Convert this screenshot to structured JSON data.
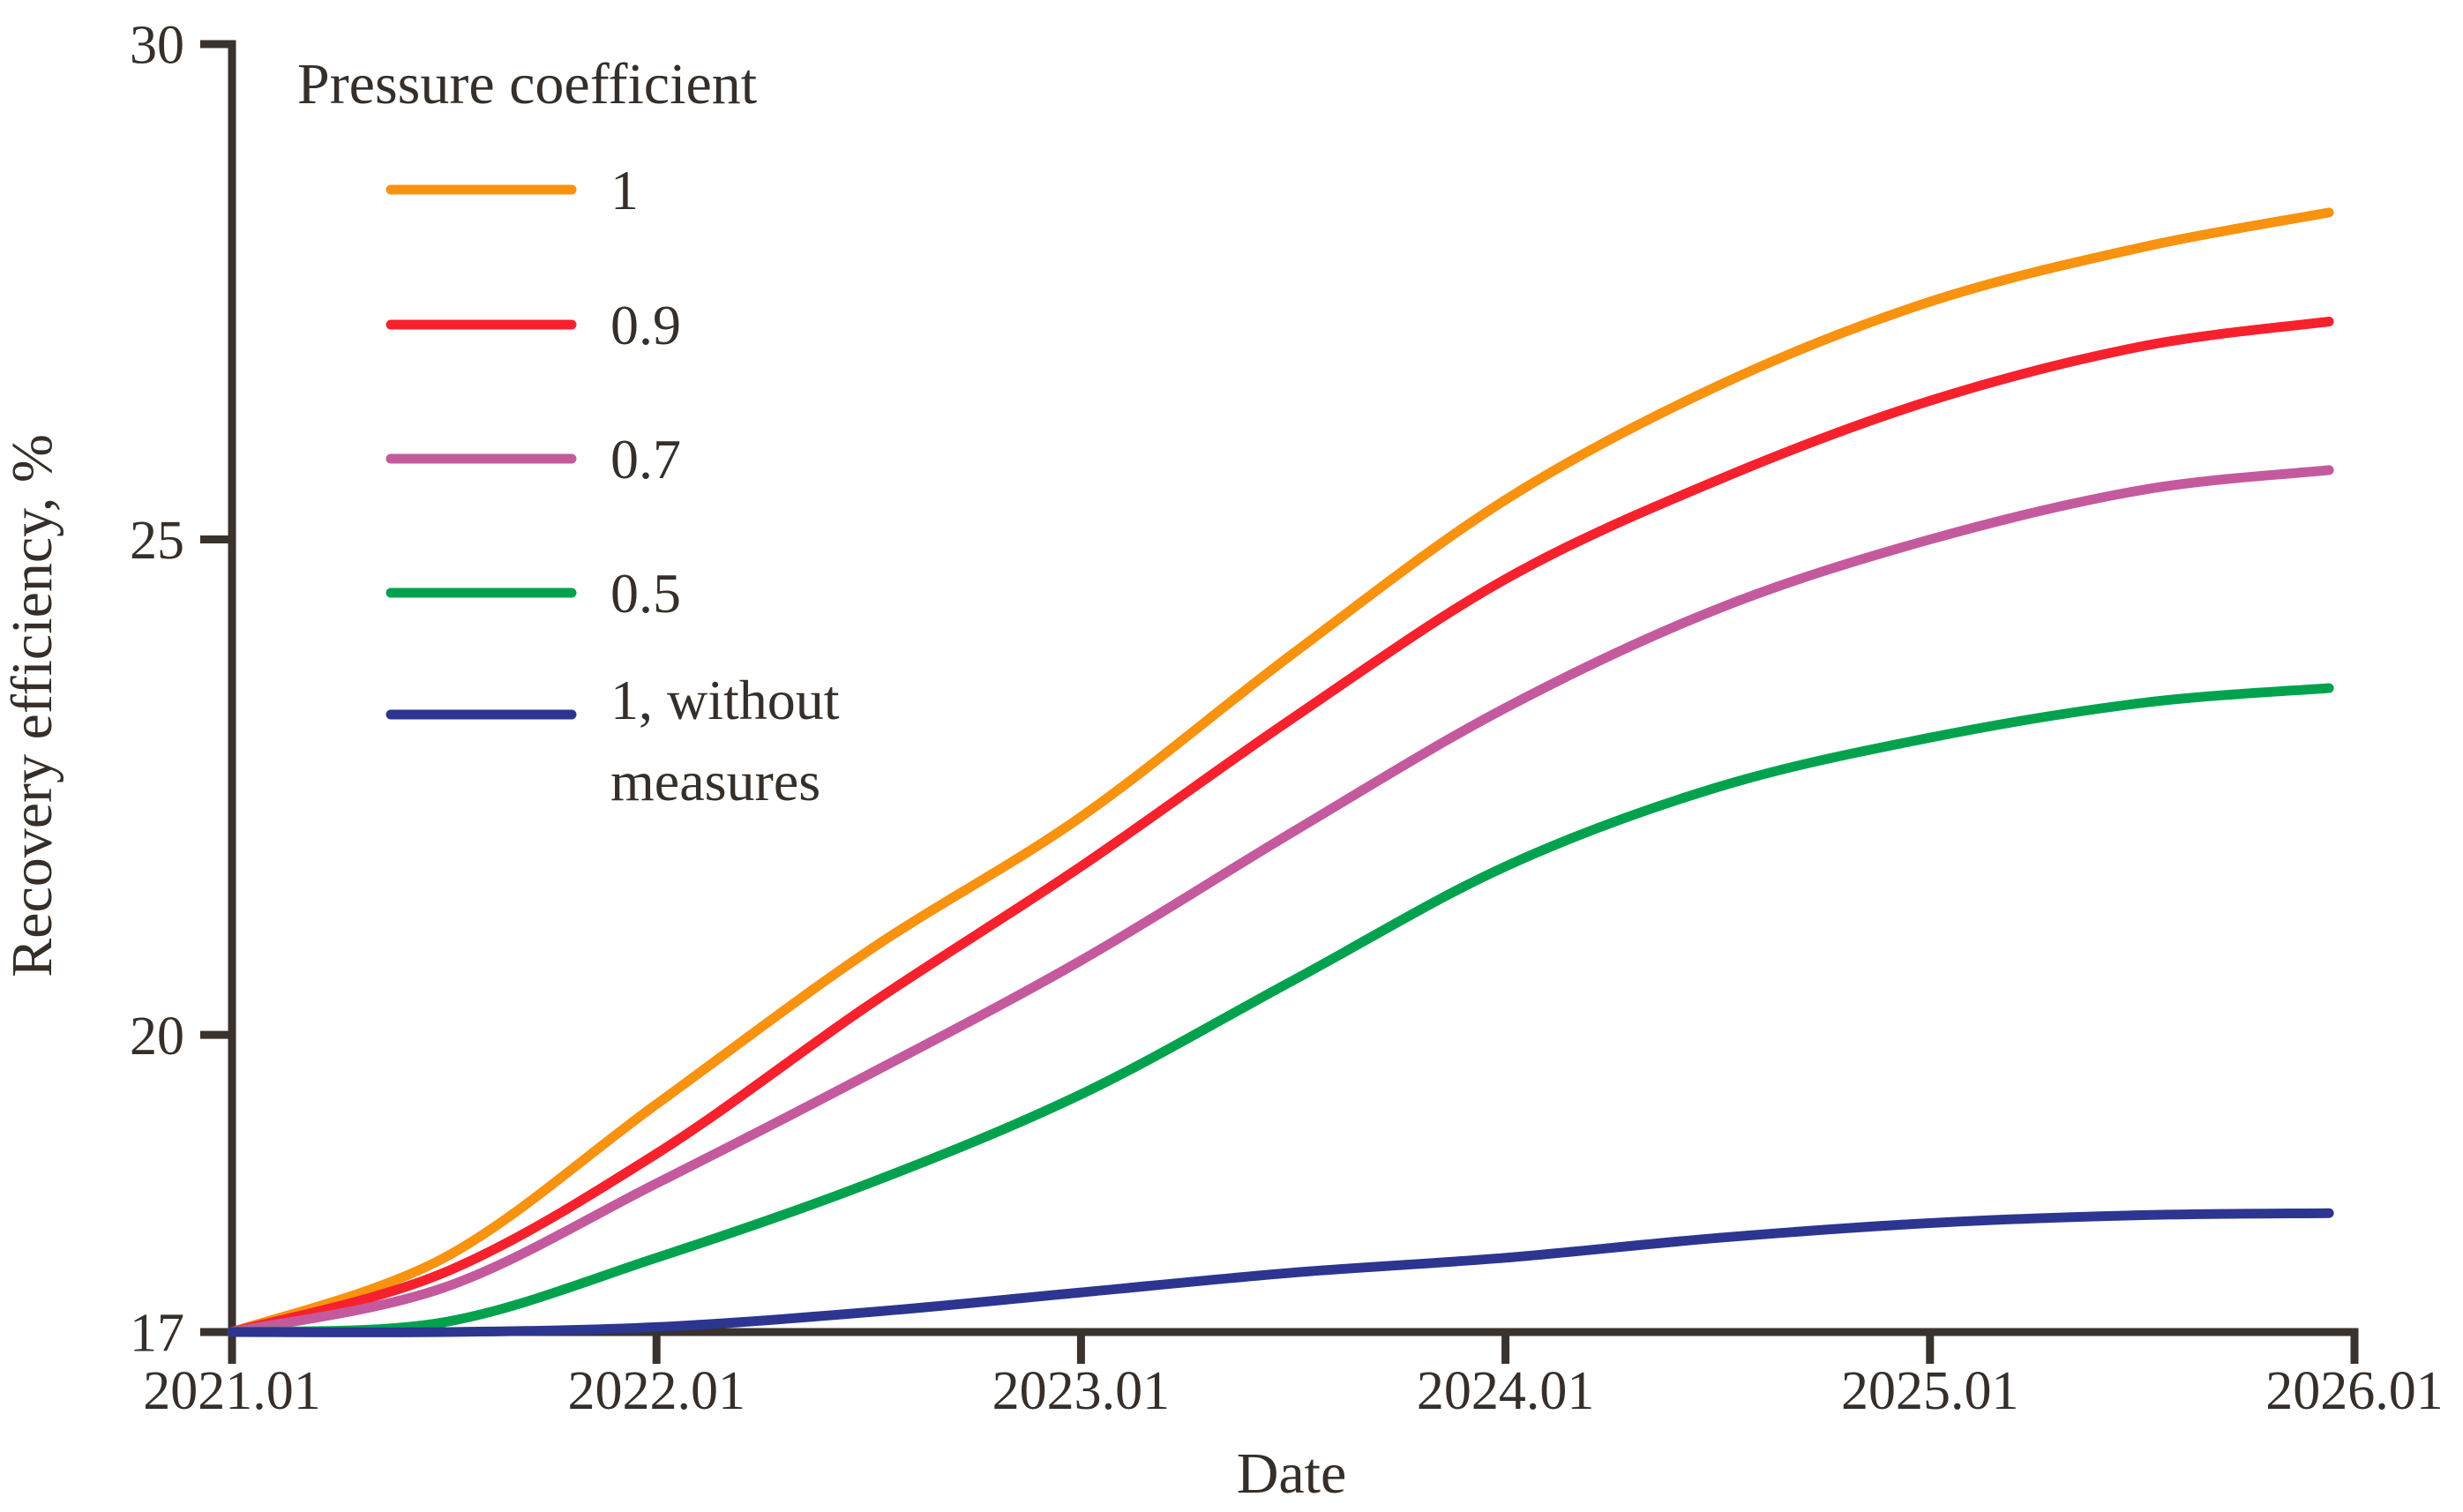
{
  "figure": {
    "background_color": "#ffffff",
    "axis_color": "#3a322c",
    "text_color": "#362f29"
  },
  "chart_data": {
    "type": "line",
    "title": "",
    "xlabel": "Date",
    "ylabel": "Recovery efficiency, %",
    "legend_title": "Pressure coefficient",
    "legend_position": "upper-left-inside",
    "grid": false,
    "x_note": "x values are years elapsed since 2021.01 (0 = 2021.01)",
    "xlim": [
      0,
      5
    ],
    "ylim": [
      17,
      30
    ],
    "x_ticks": {
      "positions": [
        0,
        1,
        2,
        3,
        4,
        5
      ],
      "labels": [
        "2021.01",
        "2022.01",
        "2023.01",
        "2024.01",
        "2025.01",
        "2026.01"
      ]
    },
    "y_ticks": {
      "positions": [
        17,
        20,
        25,
        30
      ],
      "labels": [
        "17",
        "20",
        "25",
        "30"
      ]
    },
    "series": [
      {
        "name": "1",
        "color": "#f8920f",
        "x": [
          0,
          0.5,
          1,
          1.5,
          2,
          2.5,
          3,
          3.5,
          4,
          4.5,
          4.94
        ],
        "y": [
          17.0,
          17.75,
          19.3,
          20.85,
          22.2,
          23.85,
          25.4,
          26.55,
          27.4,
          27.95,
          28.3
        ]
      },
      {
        "name": "0.9",
        "color": "#f7212e",
        "x": [
          0,
          0.5,
          1,
          1.5,
          2,
          2.5,
          3,
          3.5,
          4,
          4.5,
          4.94
        ],
        "y": [
          17.0,
          17.6,
          18.8,
          20.3,
          21.7,
          23.2,
          24.6,
          25.6,
          26.4,
          26.95,
          27.2
        ]
      },
      {
        "name": "0.7",
        "color": "#c45a9d",
        "x": [
          0,
          0.5,
          1,
          1.5,
          2,
          2.5,
          3,
          3.5,
          4,
          4.5,
          4.94
        ],
        "y": [
          17.0,
          17.45,
          18.5,
          19.6,
          20.75,
          22.05,
          23.3,
          24.3,
          25.0,
          25.5,
          25.7
        ]
      },
      {
        "name": "0.5",
        "color": "#00a24e",
        "x": [
          0,
          0.5,
          1,
          1.5,
          2,
          2.5,
          3,
          3.5,
          4,
          4.5,
          4.94
        ],
        "y": [
          17.0,
          17.1,
          17.75,
          18.5,
          19.4,
          20.55,
          21.7,
          22.5,
          23.0,
          23.35,
          23.5
        ]
      },
      {
        "name": "1, without\nmeasures",
        "color": "#2c3590",
        "x": [
          0,
          0.5,
          1,
          1.5,
          2,
          2.5,
          3,
          3.5,
          4,
          4.5,
          4.94
        ],
        "y": [
          17.0,
          17.0,
          17.05,
          17.2,
          17.4,
          17.6,
          17.75,
          17.95,
          18.1,
          18.18,
          18.2
        ]
      }
    ]
  }
}
